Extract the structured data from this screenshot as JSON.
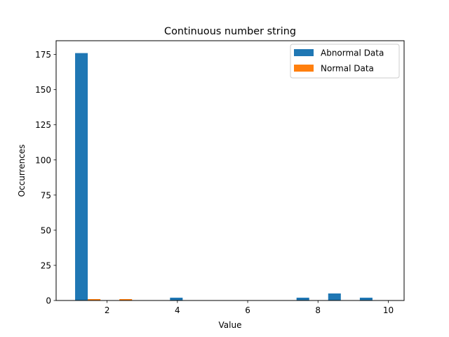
{
  "chart_data": {
    "type": "bar",
    "title": "Continuous number string",
    "xlabel": "Value",
    "ylabel": "Occurrences",
    "xlim": [
      0.55,
      10.45
    ],
    "ylim": [
      0,
      184.8
    ],
    "xticks": [
      2,
      4,
      6,
      8,
      10
    ],
    "xtick_labels": [
      "2",
      "4",
      "6",
      "8",
      "10"
    ],
    "yticks": [
      0,
      25,
      50,
      75,
      100,
      125,
      150,
      175
    ],
    "ytick_labels": [
      "0",
      "25",
      "50",
      "75",
      "100",
      "125",
      "150",
      "175"
    ],
    "bar_width": 0.36,
    "legend_position": "top-right",
    "series": [
      {
        "name": "Abnormal Data",
        "color": "#1f77b4",
        "x": [
          1.27,
          3.97,
          7.57,
          8.47,
          9.37
        ],
        "values": [
          176,
          2,
          2,
          5,
          2
        ]
      },
      {
        "name": "Normal Data",
        "color": "#ff7f0e",
        "x": [
          1.63,
          2.53
        ],
        "values": [
          1,
          1
        ]
      }
    ]
  }
}
